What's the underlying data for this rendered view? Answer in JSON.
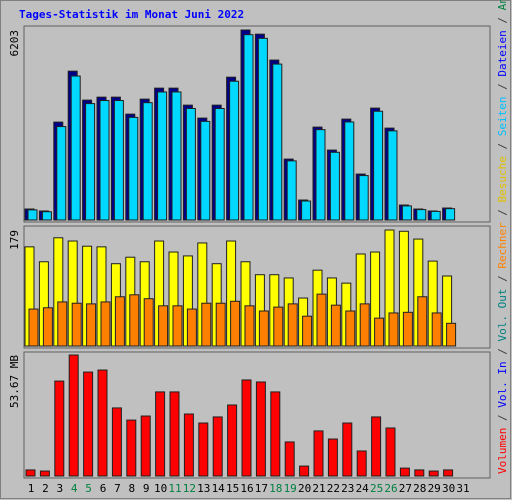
{
  "chart_data": [
    {
      "type": "bar",
      "title": "Tages-Statistik im Monat Juni 2022",
      "categories": [
        "1",
        "2",
        "3",
        "4",
        "5",
        "6",
        "7",
        "8",
        "9",
        "10",
        "11",
        "12",
        "13",
        "14",
        "15",
        "16",
        "17",
        "18",
        "19",
        "20",
        "21",
        "22",
        "23",
        "24",
        "25",
        "26",
        "27",
        "28",
        "29",
        "30",
        "31"
      ],
      "category_colors": [
        "#000000",
        "#000000",
        "#000000",
        "#008040",
        "#008040",
        "#000000",
        "#000000",
        "#000000",
        "#000000",
        "#000000",
        "#008040",
        "#008040",
        "#000000",
        "#000000",
        "#000000",
        "#000000",
        "#000000",
        "#008040",
        "#008040",
        "#000000",
        "#000000",
        "#000000",
        "#000000",
        "#000000",
        "#008040",
        "#008040",
        "#000000",
        "#000000",
        "#000000",
        "#000000",
        "#000000"
      ],
      "ylim": [
        0,
        6203
      ],
      "yticks": [
        6203
      ],
      "series": [
        {
          "color": "#00008b",
          "values": [
            359,
            294,
            3196,
            4859,
            3914,
            4011,
            4011,
            3457,
            3946,
            4305,
            4305,
            3750,
            3327,
            3750,
            4663,
            6203,
            6067,
            5221,
            1989,
            652,
            3033,
            2283,
            3294,
            1500,
            3653,
            3000,
            489,
            359,
            294,
            391,
            null
          ]
        },
        {
          "color": "#00d8ff",
          "values": [
            330,
            270,
            3050,
            4700,
            3800,
            3900,
            3900,
            3350,
            3830,
            4180,
            4180,
            3640,
            3220,
            3640,
            4530,
            6050,
            5930,
            5090,
            1930,
            620,
            2950,
            2210,
            3200,
            1450,
            3550,
            2910,
            460,
            340,
            280,
            370,
            null
          ]
        }
      ]
    },
    {
      "type": "bar",
      "ylim": [
        0,
        179
      ],
      "yticks": [
        179
      ],
      "series": [
        {
          "color": "#ffff00",
          "values": [
            153,
            130,
            167,
            162,
            154,
            153,
            127,
            137,
            130,
            162,
            145,
            139,
            159,
            127,
            162,
            130,
            110,
            110,
            105,
            74,
            117,
            105,
            97,
            142,
            145,
            179,
            177,
            165,
            131,
            108,
            null
          ]
        },
        {
          "color": "#ff8000",
          "values": [
            57,
            59,
            68,
            66,
            65,
            68,
            76,
            79,
            73,
            62,
            62,
            57,
            66,
            66,
            69,
            62,
            54,
            60,
            65,
            46,
            80,
            63,
            54,
            65,
            43,
            51,
            52,
            76,
            51,
            35,
            null
          ]
        }
      ]
    },
    {
      "type": "bar",
      "ylim": [
        0,
        53.67
      ],
      "yticks": [
        {
          "value": 53.67,
          "label": "53.67 MB"
        }
      ],
      "series": [
        {
          "color": "#ff0000",
          "values": [
            2.7,
            2.2,
            42.1,
            53.67,
            46.1,
            47.0,
            30.2,
            24.8,
            26.6,
            37.3,
            37.3,
            27.5,
            23.5,
            26.2,
            31.5,
            42.6,
            41.7,
            37.3,
            15.1,
            4.4,
            20.0,
            16.4,
            23.5,
            11.1,
            26.2,
            21.3,
            3.5,
            2.7,
            2.2,
            2.7,
            null
          ]
        }
      ]
    }
  ],
  "legend": [
    {
      "name": "Volumen",
      "color": "#ff0000"
    },
    {
      "name": "Vol. In",
      "color": "#0000ff"
    },
    {
      "name": "Vol. Out",
      "color": "#008080"
    },
    {
      "name": "Rechner",
      "color": "#ff8000"
    },
    {
      "name": "Besuche",
      "color": "#e0c000"
    },
    {
      "name": "Seiten",
      "color": "#00c0ff"
    },
    {
      "name": "Dateien",
      "color": "#0000ff"
    },
    {
      "name": "Anfragen",
      "color": "#008040"
    }
  ],
  "legend_separator": " / "
}
